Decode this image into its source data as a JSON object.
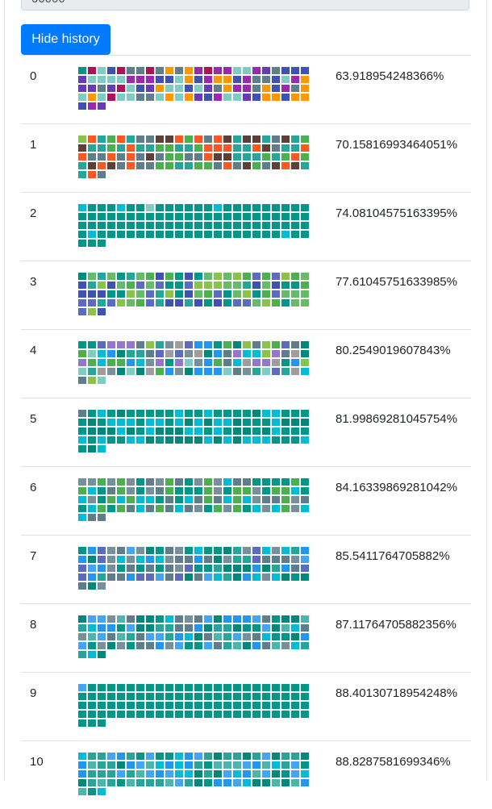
{
  "top_field": {
    "value": "00000"
  },
  "toggle_button": {
    "label": "Hide history"
  },
  "palettes": [
    [
      "#9c27b0",
      "#e91e63",
      "#8bc34a",
      "#cddc39",
      "#3f51b5",
      "#ff5722",
      "#009688",
      "#795548",
      "#607d8b",
      "#ffc107",
      "#4caf50",
      "#2196f3",
      "#673ab7",
      "#f44336",
      "#00bcd4",
      "#9e9e9e",
      "#ff9800",
      "#8e24aa",
      "#1a237e",
      "#c0ca33",
      "#ad1457",
      "#26a69a",
      "#5d4037",
      "#ef9a9a",
      "#80cbc4",
      "#b39ddb",
      "#558b2f",
      "#212121"
    ],
    [
      "#4caf50",
      "#2196f3",
      "#673ab7",
      "#795548",
      "#607d8b",
      "#9c27b0",
      "#009688",
      "#3f51b5",
      "#26a69a",
      "#8bc34a",
      "#e91e63",
      "#00bcd4",
      "#5d4037",
      "#80cbc4",
      "#8e24aa",
      "#1a237e",
      "#ff5722",
      "#9e9e9e",
      "#558b2f",
      "#212121"
    ],
    [
      "#009688",
      "#607d8b",
      "#4caf50",
      "#2196f3",
      "#26a69a",
      "#3f51b5",
      "#8bc34a",
      "#795548",
      "#00bcd4",
      "#80cbc4",
      "#9c27b0",
      "#c0ca33",
      "#ff7043",
      "#1a237e",
      "#5c6bc0",
      "#66bb6a"
    ],
    [
      "#009688",
      "#607d8b",
      "#26a69a",
      "#2196f3",
      "#4caf50",
      "#00bcd4",
      "#3f51b5",
      "#80cbc4",
      "#8bc34a",
      "#78909c",
      "#5c6bc0",
      "#9575cd",
      "#66bb6a",
      "#00897b"
    ],
    [
      "#009688",
      "#607d8b",
      "#26a69a",
      "#2196f3",
      "#4caf50",
      "#00bcd4",
      "#78909c",
      "#80cbc4",
      "#8bc34a",
      "#5c6bc0",
      "#9575cd",
      "#00897b",
      "#9e9e9e"
    ],
    [
      "#009688",
      "#607d8b",
      "#26a69a",
      "#2196f3",
      "#00bcd4",
      "#78909c",
      "#4caf50",
      "#5c6bc0",
      "#00897b",
      "#80cbc4",
      "#ff9800",
      "#9e9e9e"
    ],
    [
      "#009688",
      "#26a69a",
      "#607d8b",
      "#2196f3",
      "#00bcd4",
      "#00897b",
      "#78909c",
      "#5c6bc0",
      "#4caf50",
      "#42a5f5"
    ],
    [
      "#009688",
      "#26a69a",
      "#2196f3",
      "#607d8b",
      "#00bcd4",
      "#00897b",
      "#78909c",
      "#42a5f5",
      "#5c6bc0"
    ],
    [
      "#009688",
      "#26a69a",
      "#2196f3",
      "#00bcd4",
      "#607d8b",
      "#00897b",
      "#42a5f5",
      "#4db6ac",
      "#78909c"
    ],
    [
      "#009688",
      "#26a69a",
      "#00bcd4",
      "#2196f3",
      "#00897b",
      "#42a5f5",
      "#4db6ac",
      "#607d8b"
    ],
    [
      "#009688",
      "#26a69a",
      "#00bcd4",
      "#2196f3",
      "#00897b",
      "#42a5f5",
      "#4db6ac"
    ]
  ],
  "history": [
    {
      "index": "0",
      "score": "63.918954248366%",
      "cells": 99
    },
    {
      "index": "1",
      "score": "70.15816993464051%",
      "cells": 99
    },
    {
      "index": "2",
      "score": "74.08104575163395%",
      "cells": 99
    },
    {
      "index": "3",
      "score": "77.61045751633985%",
      "cells": 99
    },
    {
      "index": "4",
      "score": "80.2549019607843%",
      "cells": 99
    },
    {
      "index": "5",
      "score": "81.99869281045754%",
      "cells": 99
    },
    {
      "index": "6",
      "score": "84.16339869281042%",
      "cells": 99
    },
    {
      "index": "7",
      "score": "85.5411764705882%",
      "cells": 99
    },
    {
      "index": "8",
      "score": "87.11764705882356%",
      "cells": 99
    },
    {
      "index": "9",
      "score": "88.40130718954248%",
      "cells": 99
    },
    {
      "index": "10",
      "score": "88.8287581699346%",
      "cells": 99
    }
  ]
}
